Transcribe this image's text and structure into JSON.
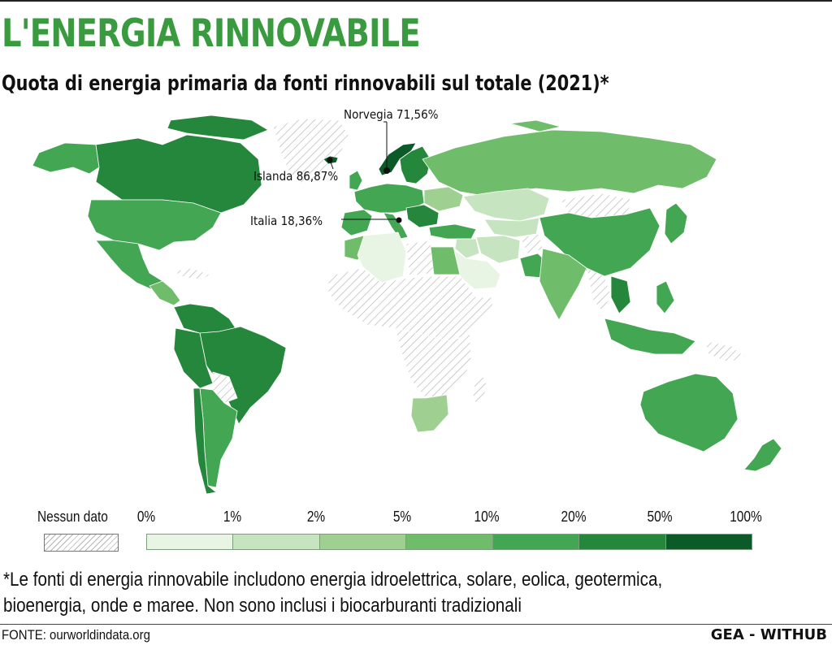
{
  "title": "L'ENERGIA RINNOVABILE",
  "subtitle": "Quota di energia primaria da fonti rinnovabili sul totale (2021)*",
  "callouts": {
    "norway": "Norvegia 71,56%",
    "iceland": "Islanda 86,87%",
    "italy": "Italia 18,36%"
  },
  "legend": {
    "no_data": "Nessun dato",
    "ticks": [
      "0%",
      "1%",
      "2%",
      "5%",
      "10%",
      "20%",
      "50%",
      "100%"
    ],
    "colors": [
      "#e8f4e4",
      "#c6e4bf",
      "#9fd092",
      "#6fbc6b",
      "#42a653",
      "#24873c",
      "#0c5a28"
    ]
  },
  "highlighted_values": {
    "Norvegia": 71.56,
    "Islanda": 86.87,
    "Italia": 18.36
  },
  "footnote": {
    "line1": "*Le fonti di energia rinnovabile includono energia idroelettrica, solare, eolica, geotermica,",
    "line2": "bioenergia, onde e maree. Non sono inclusi i biocarburanti tradizionali"
  },
  "source": "FONTE: ourworldindata.org",
  "credit": "GEA - WITHUB"
}
